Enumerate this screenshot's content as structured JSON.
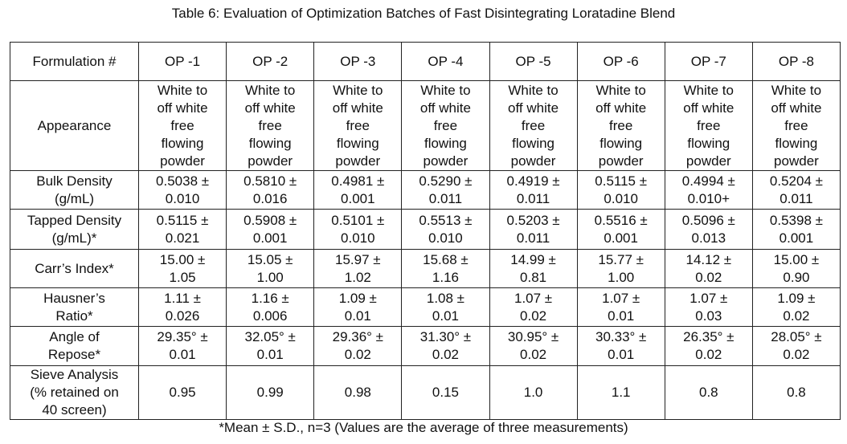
{
  "title": "Table 6: Evaluation of Optimization Batches of Fast Disintegrating Loratadine Blend",
  "table": {
    "header": [
      "Formulation #",
      "OP -1",
      "OP -2",
      "OP -3",
      "OP -4",
      "OP -5",
      "OP -6",
      "OP -7",
      "OP -8"
    ],
    "rows": [
      [
        [
          "Appearance"
        ],
        [
          "White to",
          "off white",
          "free",
          "flowing",
          "powder"
        ],
        [
          "White to",
          "off white",
          "free",
          "flowing",
          "powder"
        ],
        [
          "White to",
          "off white",
          "free",
          "flowing",
          "powder"
        ],
        [
          "White to",
          "off white",
          "free",
          "flowing",
          "powder"
        ],
        [
          "White to",
          "off white",
          "free",
          "flowing",
          "powder"
        ],
        [
          "White to",
          "off white",
          "free",
          "flowing",
          "powder"
        ],
        [
          "White to",
          "off white",
          "free",
          "flowing",
          "powder"
        ],
        [
          "White to",
          "off white",
          "free",
          "flowing",
          "powder"
        ]
      ],
      [
        [
          "Bulk Density",
          "(g/mL)"
        ],
        [
          "0.5038 ±",
          "0.010"
        ],
        [
          "0.5810 ±",
          "0.016"
        ],
        [
          "0.4981 ±",
          "0.001"
        ],
        [
          "0.5290 ±",
          "0.011"
        ],
        [
          "0.4919 ±",
          "0.011"
        ],
        [
          "0.5115 ±",
          "0.010"
        ],
        [
          "0.4994 ±",
          "0.010+"
        ],
        [
          "0.5204 ±",
          "0.011"
        ]
      ],
      [
        [
          "Tapped Density",
          "(g/mL)*"
        ],
        [
          "0.5115 ±",
          "0.021"
        ],
        [
          "0.5908 ±",
          "0.001"
        ],
        [
          "0.5101 ±",
          "0.010"
        ],
        [
          "0.5513 ±",
          "0.010"
        ],
        [
          "0.5203 ±",
          "0.011"
        ],
        [
          "0.5516 ±",
          "0.001"
        ],
        [
          "0.5096 ±",
          "0.013"
        ],
        [
          "0.5398 ±",
          "0.001"
        ]
      ],
      [
        [
          "Carr’s Index*"
        ],
        [
          "15.00 ±",
          "1.05"
        ],
        [
          "15.05 ±",
          "1.00"
        ],
        [
          "15.97 ±",
          "1.02"
        ],
        [
          "15.68 ±",
          "1.16"
        ],
        [
          "14.99 ±",
          "0.81"
        ],
        [
          "15.77 ±",
          "1.00"
        ],
        [
          "14.12 ±",
          "0.02"
        ],
        [
          "15.00 ±",
          "0.90"
        ]
      ],
      [
        [
          "Hausner’s",
          "Ratio*"
        ],
        [
          "1.11 ±",
          "0.026"
        ],
        [
          "1.16 ±",
          "0.006"
        ],
        [
          "1.09 ±",
          "0.01"
        ],
        [
          "1.08 ±",
          "0.01"
        ],
        [
          "1.07 ±",
          "0.02"
        ],
        [
          "1.07 ±",
          "0.01"
        ],
        [
          "1.07 ±",
          "0.03"
        ],
        [
          "1.09 ±",
          "0.02"
        ]
      ],
      [
        [
          "Angle of",
          "Repose*"
        ],
        [
          "29.35° ±",
          "0.01"
        ],
        [
          "32.05° ±",
          "0.01"
        ],
        [
          "29.36° ±",
          "0.02"
        ],
        [
          "31.30° ±",
          "0.02"
        ],
        [
          "30.95° ±",
          "0.02"
        ],
        [
          "30.33° ±",
          "0.01"
        ],
        [
          "26.35° ±",
          "0.02"
        ],
        [
          "28.05° ±",
          "0.02"
        ]
      ],
      [
        [
          "Sieve Analysis",
          "(% retained on",
          "40 screen)"
        ],
        [
          "0.95"
        ],
        [
          "0.99"
        ],
        [
          "0.98"
        ],
        [
          "0.15"
        ],
        [
          "1.0"
        ],
        [
          "1.1"
        ],
        [
          "0.8"
        ],
        [
          "0.8"
        ]
      ]
    ]
  },
  "footnote": "*Mean ± S.D., n=3 (Values are the average of three measurements)"
}
